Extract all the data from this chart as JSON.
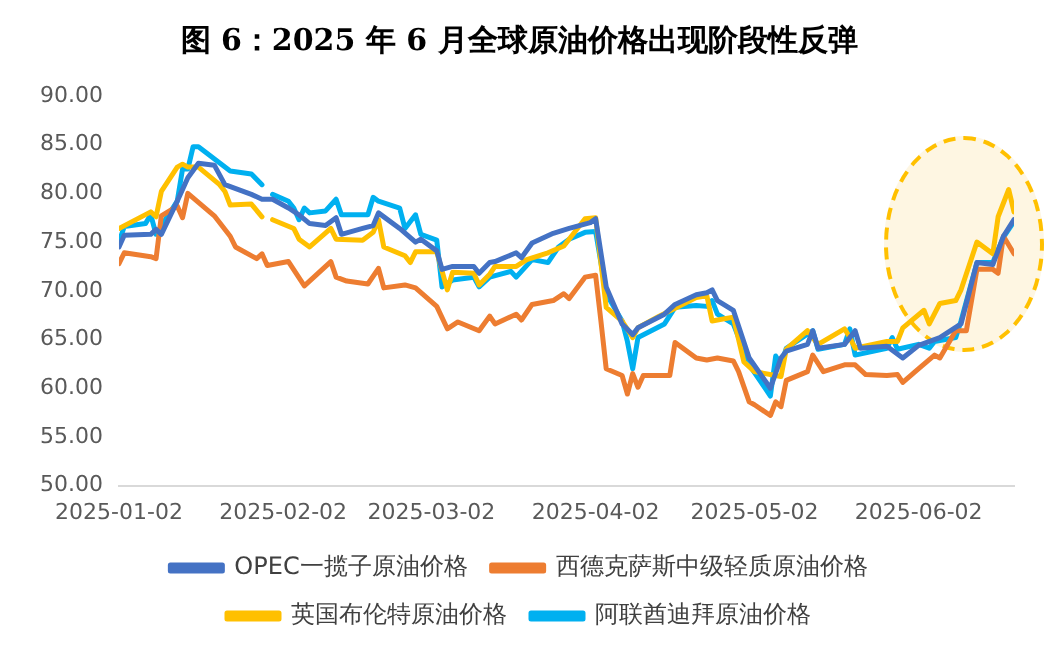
{
  "chart_data": {
    "type": "line",
    "title": "图 6：2025 年 6 月全球原油价格出现阶段性反弹",
    "xlim": [
      "2025-01-02",
      "2025-06-20"
    ],
    "xticks": [
      "2025-01-02",
      "2025-02-02",
      "2025-03-02",
      "2025-04-02",
      "2025-05-02",
      "2025-06-02"
    ],
    "ylim": [
      50,
      90
    ],
    "yticks": [
      {
        "value": 50,
        "label": "50.00"
      },
      {
        "value": 55,
        "label": "55.00"
      },
      {
        "value": 60,
        "label": "60.00"
      },
      {
        "value": 65,
        "label": "65.00"
      },
      {
        "value": 70,
        "label": "70.00"
      },
      {
        "value": 75,
        "label": "75.00"
      },
      {
        "value": 80,
        "label": "80.00"
      },
      {
        "value": 85,
        "label": "85.00"
      },
      {
        "value": 90,
        "label": "90.00"
      }
    ],
    "grid": false,
    "legend": "bottom",
    "marker": "none",
    "line_style": "solid",
    "series": [
      {
        "name": "OPEC一揽子原油价格",
        "color": "#4472c4",
        "x": [
          "2025-01-02",
          "2025-01-03",
          "2025-01-08",
          "2025-01-09",
          "2025-01-10",
          "2025-01-13",
          "2025-01-15",
          "2025-01-17",
          "2025-01-20",
          "2025-01-22",
          "2025-01-27",
          "2025-01-29",
          "2025-01-31",
          "2025-02-03",
          "2025-02-05",
          "2025-02-07",
          "2025-02-10",
          "2025-02-12",
          "2025-02-13",
          "2025-02-17",
          "2025-02-19",
          "2025-02-20",
          "2025-02-24",
          "2025-02-27",
          "2025-02-28",
          "2025-03-03",
          "2025-03-04",
          "2025-03-06",
          "2025-03-10",
          "2025-03-11",
          "2025-03-13",
          "2025-03-14",
          "2025-03-18",
          "2025-03-19",
          "2025-03-21",
          "2025-03-25",
          "2025-03-28",
          "2025-04-01",
          "2025-04-02",
          "2025-04-04",
          "2025-04-07",
          "2025-04-09",
          "2025-04-10",
          "2025-04-15",
          "2025-04-17",
          "2025-04-21",
          "2025-04-23",
          "2025-04-24",
          "2025-04-25",
          "2025-04-28",
          "2025-05-01",
          "2025-05-05",
          "2025-05-07",
          "2025-05-08",
          "2025-05-12",
          "2025-05-13",
          "2025-05-14",
          "2025-05-19",
          "2025-05-21",
          "2025-05-22",
          "2025-05-27",
          "2025-05-30",
          "2025-06-02",
          "2025-06-06",
          "2025-06-10",
          "2025-06-13",
          "2025-06-16",
          "2025-06-18",
          "2025-06-20"
        ],
        "values": [
          74.5,
          75.7,
          75.8,
          76.3,
          75.8,
          79.2,
          81.6,
          83.1,
          82.9,
          80.9,
          79.9,
          79.4,
          79.4,
          78.5,
          77.8,
          76.9,
          76.7,
          77.5,
          75.8,
          76.4,
          76.7,
          78.0,
          76.4,
          75.0,
          75.3,
          74.1,
          72.2,
          72.5,
          72.5,
          71.8,
          72.9,
          73.0,
          73.9,
          73.4,
          74.9,
          75.9,
          76.4,
          77.0,
          77.4,
          70.4,
          66.6,
          65.5,
          66.2,
          67.6,
          68.6,
          69.6,
          69.8,
          70.1,
          69.0,
          68.0,
          63.1,
          60.0,
          63.1,
          63.8,
          64.5,
          65.9,
          64.1,
          64.5,
          65.9,
          64.1,
          64.3,
          63.1,
          64.4,
          65.2,
          66.6,
          72.9,
          72.7,
          75.6,
          77.3
        ]
      },
      {
        "name": "西德克萨斯中级轻质原油价格",
        "color": "#ed7d31",
        "x": [
          "2025-01-02",
          "2025-01-03",
          "2025-01-08",
          "2025-01-09",
          "2025-01-10",
          "2025-01-13",
          "2025-01-14",
          "2025-01-15",
          "2025-01-20",
          "2025-01-23",
          "2025-01-24",
          "2025-01-28",
          "2025-01-29",
          "2025-01-30",
          "2025-02-03",
          "2025-02-06",
          "2025-02-11",
          "2025-02-12",
          "2025-02-14",
          "2025-02-18",
          "2025-02-20",
          "2025-02-21",
          "2025-02-25",
          "2025-02-27",
          "2025-03-03",
          "2025-03-05",
          "2025-03-07",
          "2025-03-11",
          "2025-03-13",
          "2025-03-14",
          "2025-03-18",
          "2025-03-19",
          "2025-03-21",
          "2025-03-25",
          "2025-03-27",
          "2025-03-28",
          "2025-03-31",
          "2025-04-02",
          "2025-04-03",
          "2025-04-04",
          "2025-04-07",
          "2025-04-08",
          "2025-04-09",
          "2025-04-10",
          "2025-04-11",
          "2025-04-16",
          "2025-04-17",
          "2025-04-21",
          "2025-04-23",
          "2025-04-25",
          "2025-04-28",
          "2025-04-29",
          "2025-05-01",
          "2025-05-02",
          "2025-05-05",
          "2025-05-06",
          "2025-05-07",
          "2025-05-08",
          "2025-05-12",
          "2025-05-13",
          "2025-05-15",
          "2025-05-19",
          "2025-05-21",
          "2025-05-23",
          "2025-05-27",
          "2025-05-29",
          "2025-05-30",
          "2025-06-02",
          "2025-06-05",
          "2025-06-06",
          "2025-06-09",
          "2025-06-11",
          "2025-06-13",
          "2025-06-16",
          "2025-06-17",
          "2025-06-18",
          "2025-06-20"
        ],
        "values": [
          72.8,
          73.9,
          73.5,
          73.3,
          77.7,
          78.7,
          77.5,
          80.0,
          77.7,
          75.6,
          74.5,
          73.3,
          73.8,
          72.6,
          73.0,
          70.5,
          73.0,
          71.4,
          71.0,
          70.7,
          72.3,
          70.3,
          70.6,
          70.3,
          68.4,
          66.1,
          66.8,
          65.9,
          67.4,
          66.6,
          67.6,
          67.0,
          68.6,
          69.0,
          69.7,
          69.2,
          71.4,
          71.6,
          66.9,
          62.0,
          61.3,
          59.4,
          61.5,
          60.1,
          61.3,
          61.3,
          64.7,
          63.1,
          62.9,
          63.1,
          62.8,
          61.7,
          58.6,
          58.3,
          57.2,
          58.6,
          58.1,
          60.8,
          61.7,
          63.4,
          61.7,
          62.4,
          62.4,
          61.4,
          61.3,
          61.4,
          60.6,
          62.0,
          63.4,
          63.1,
          65.9,
          65.9,
          72.2,
          72.2,
          71.8,
          75.6,
          73.8
        ]
      },
      {
        "name": "英国布伦特原油价格",
        "color": "#ffc000",
        "x": [
          "2025-01-02",
          "2025-01-08",
          "2025-01-09",
          "2025-01-10",
          "2025-01-13",
          "2025-01-14",
          "2025-01-15",
          "2025-01-17",
          "2025-01-21",
          "2025-01-22",
          "2025-01-23",
          "2025-01-27",
          "2025-01-29",
          "2025-01-30",
          "2025-01-31",
          "2025-02-04",
          "2025-02-05",
          "2025-02-07",
          "2025-02-11",
          "2025-02-12",
          "2025-02-17",
          "2025-02-19",
          "2025-02-20",
          "2025-02-21",
          "2025-02-25",
          "2025-02-26",
          "2025-02-27",
          "2025-03-03",
          "2025-03-05",
          "2025-03-06",
          "2025-03-10",
          "2025-03-11",
          "2025-03-13",
          "2025-03-14",
          "2025-03-18",
          "2025-03-20",
          "2025-03-24",
          "2025-03-27",
          "2025-03-31",
          "2025-04-02",
          "2025-04-04",
          "2025-04-07",
          "2025-04-09",
          "2025-04-10",
          "2025-04-14",
          "2025-04-17",
          "2025-04-21",
          "2025-04-23",
          "2025-04-24",
          "2025-04-28",
          "2025-04-30",
          "2025-05-02",
          "2025-05-07",
          "2025-05-08",
          "2025-05-12",
          "2025-05-14",
          "2025-05-19",
          "2025-05-20",
          "2025-05-21",
          "2025-05-27",
          "2025-05-29",
          "2025-05-30",
          "2025-06-03",
          "2025-06-04",
          "2025-06-06",
          "2025-06-09",
          "2025-06-10",
          "2025-06-13",
          "2025-06-16",
          "2025-06-17",
          "2025-06-19",
          "2025-06-20"
        ],
        "values": [
          76.4,
          78.1,
          77.6,
          80.2,
          82.7,
          83.0,
          82.7,
          82.7,
          80.9,
          80.2,
          78.8,
          78.9,
          77.6,
          null,
          77.3,
          76.4,
          75.3,
          74.5,
          76.4,
          75.3,
          75.2,
          76.0,
          77.3,
          74.5,
          73.6,
          72.9,
          74.0,
          74.0,
          70.1,
          71.9,
          71.8,
          70.6,
          71.7,
          72.5,
          72.5,
          73.2,
          73.9,
          74.6,
          77.4,
          77.5,
          68.3,
          66.9,
          65.2,
          66.2,
          67.4,
          68.2,
          69.3,
          69.5,
          66.9,
          67.3,
          62.7,
          61.7,
          61.2,
          64.0,
          65.9,
          64.5,
          66.1,
          65.2,
          64.1,
          64.8,
          64.8,
          66.2,
          68.0,
          66.6,
          68.7,
          69.0,
          70.1,
          75.0,
          73.8,
          77.6,
          80.4,
          78.1
        ]
      },
      {
        "name": "阿联酋迪拜原油价格",
        "color": "#00b0f0",
        "x": [
          "2025-01-02",
          "2025-01-03",
          "2025-01-07",
          "2025-01-08",
          "2025-01-09",
          "2025-01-13",
          "2025-01-14",
          "2025-01-15",
          "2025-01-16",
          "2025-01-17",
          "2025-01-23",
          "2025-01-27",
          "2025-01-29",
          "2025-01-30",
          "2025-01-31",
          "2025-02-03",
          "2025-02-04",
          "2025-02-05",
          "2025-02-06",
          "2025-02-07",
          "2025-02-10",
          "2025-02-12",
          "2025-02-13",
          "2025-02-17",
          "2025-02-18",
          "2025-02-19",
          "2025-02-20",
          "2025-02-24",
          "2025-02-25",
          "2025-02-27",
          "2025-02-28",
          "2025-03-03",
          "2025-03-04",
          "2025-03-06",
          "2025-03-10",
          "2025-03-11",
          "2025-03-13",
          "2025-03-17",
          "2025-03-18",
          "2025-03-21",
          "2025-03-24",
          "2025-03-26",
          "2025-03-28",
          "2025-03-31",
          "2025-04-02",
          "2025-04-04",
          "2025-04-07",
          "2025-04-08",
          "2025-04-09",
          "2025-04-10",
          "2025-04-15",
          "2025-04-17",
          "2025-04-21",
          "2025-04-23",
          "2025-04-24",
          "2025-04-25",
          "2025-04-28",
          "2025-05-01",
          "2025-05-05",
          "2025-05-06",
          "2025-05-07",
          "2025-05-08",
          "2025-05-13",
          "2025-05-14",
          "2025-05-19",
          "2025-05-20",
          "2025-05-21",
          "2025-05-27",
          "2025-05-28",
          "2025-05-29",
          "2025-06-02",
          "2025-06-04",
          "2025-06-05",
          "2025-06-09",
          "2025-06-10",
          "2025-06-13",
          "2025-06-16",
          "2025-06-18",
          "2025-06-20"
        ],
        "values": [
          75.0,
          76.6,
          76.9,
          77.8,
          75.8,
          79.2,
          82.5,
          82.5,
          84.8,
          84.8,
          82.3,
          82.0,
          80.9,
          null,
          79.9,
          79.2,
          78.5,
          77.3,
          78.5,
          78.0,
          78.2,
          79.4,
          77.8,
          77.8,
          77.8,
          79.6,
          79.2,
          78.5,
          76.4,
          77.8,
          75.8,
          75.2,
          70.4,
          71.1,
          71.4,
          70.4,
          71.4,
          72.0,
          71.4,
          73.2,
          72.9,
          74.5,
          75.3,
          76.0,
          76.1,
          69.7,
          66.9,
          64.8,
          62.0,
          65.2,
          66.6,
          68.3,
          68.5,
          68.4,
          69.0,
          67.6,
          66.6,
          62.4,
          59.2,
          63.3,
          62.4,
          64.1,
          65.9,
          64.0,
          64.5,
          66.1,
          63.4,
          64.1,
          65.2,
          64.0,
          64.5,
          64.1,
          64.8,
          65.2,
          66.9,
          72.9,
          72.9,
          75.5,
          77.1
        ]
      }
    ]
  }
}
